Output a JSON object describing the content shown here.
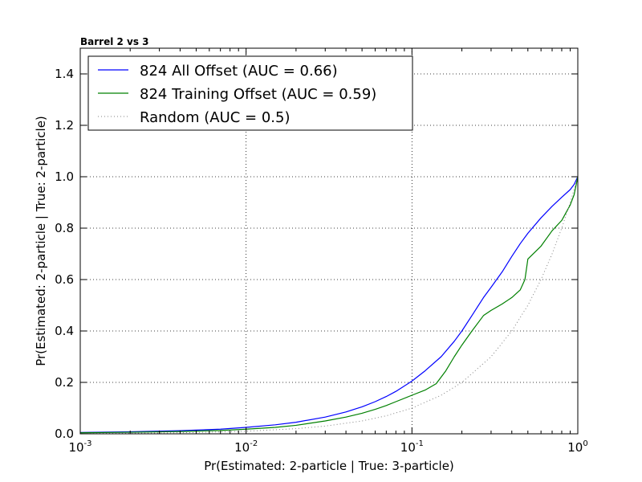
{
  "chart_data": {
    "type": "line",
    "title": "Barrel 2 vs 3",
    "xlabel": "Pr(Estimated: 2-particle | True: 3-particle)",
    "ylabel": "Pr(Estimated: 2-particle | True: 2-particle)",
    "xscale": "log",
    "xlim": [
      0.001,
      1
    ],
    "ylim": [
      0,
      1.5
    ],
    "x_ticks": [
      {
        "base": "10",
        "exp": "-3",
        "value": 0.001
      },
      {
        "base": "10",
        "exp": "-2",
        "value": 0.01
      },
      {
        "base": "10",
        "exp": "-1",
        "value": 0.1
      },
      {
        "base": "10",
        "exp": "0",
        "value": 1
      }
    ],
    "y_ticks": [
      "0.0",
      "0.2",
      "0.4",
      "0.6",
      "0.8",
      "1.0",
      "1.2",
      "1.4"
    ],
    "grid": true,
    "legend_position": "top-left",
    "series": [
      {
        "name": "824 All Offset (AUC = 0.66)",
        "color": "#0000ff",
        "style": "solid",
        "x": [
          0.001,
          0.002,
          0.004,
          0.007,
          0.01,
          0.015,
          0.02,
          0.03,
          0.04,
          0.05,
          0.06,
          0.07,
          0.08,
          0.1,
          0.12,
          0.15,
          0.18,
          0.2,
          0.23,
          0.27,
          0.3,
          0.35,
          0.4,
          0.45,
          0.5,
          0.6,
          0.7,
          0.8,
          0.9,
          0.95,
          1.0
        ],
        "y": [
          0.005,
          0.008,
          0.012,
          0.018,
          0.025,
          0.035,
          0.045,
          0.065,
          0.085,
          0.105,
          0.125,
          0.145,
          0.165,
          0.205,
          0.245,
          0.3,
          0.36,
          0.4,
          0.46,
          0.53,
          0.57,
          0.63,
          0.69,
          0.74,
          0.78,
          0.84,
          0.885,
          0.92,
          0.95,
          0.97,
          1.0
        ]
      },
      {
        "name": "824 Training Offset (AUC = 0.59)",
        "color": "#008000",
        "style": "solid",
        "x": [
          0.001,
          0.002,
          0.004,
          0.007,
          0.01,
          0.015,
          0.02,
          0.03,
          0.04,
          0.05,
          0.06,
          0.07,
          0.08,
          0.1,
          0.12,
          0.14,
          0.16,
          0.18,
          0.2,
          0.23,
          0.27,
          0.3,
          0.35,
          0.4,
          0.45,
          0.48,
          0.5,
          0.6,
          0.7,
          0.8,
          0.9,
          0.95,
          1.0
        ],
        "y": [
          0.004,
          0.006,
          0.009,
          0.013,
          0.018,
          0.025,
          0.033,
          0.05,
          0.065,
          0.08,
          0.095,
          0.11,
          0.125,
          0.15,
          0.17,
          0.195,
          0.245,
          0.3,
          0.345,
          0.4,
          0.46,
          0.48,
          0.505,
          0.53,
          0.56,
          0.6,
          0.68,
          0.73,
          0.79,
          0.83,
          0.89,
          0.93,
          1.0
        ]
      },
      {
        "name": "Random (AUC = 0.5)",
        "color": "#808080",
        "style": "dotted",
        "x": [
          0.001,
          0.002,
          0.005,
          0.01,
          0.02,
          0.03,
          0.05,
          0.07,
          0.1,
          0.15,
          0.2,
          0.3,
          0.4,
          0.5,
          0.6,
          0.7,
          0.8,
          0.9,
          1.0
        ],
        "y": [
          0.001,
          0.002,
          0.005,
          0.01,
          0.02,
          0.03,
          0.05,
          0.07,
          0.1,
          0.15,
          0.2,
          0.3,
          0.4,
          0.5,
          0.6,
          0.7,
          0.8,
          0.9,
          1.0
        ]
      }
    ]
  }
}
